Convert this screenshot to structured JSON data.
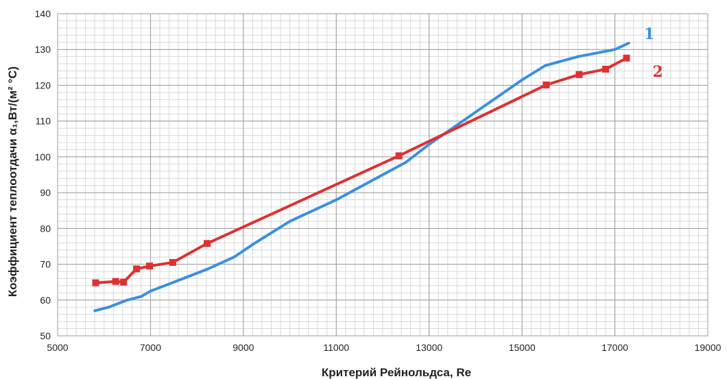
{
  "chart_data": {
    "type": "line",
    "xlabel": "Критерий Рейнольдса, Re",
    "ylabel": "Коэффициент теплоотдачи α₁,Вт/(м² °С)",
    "xlim": [
      5000,
      19000
    ],
    "ylim": [
      50,
      140
    ],
    "x_ticks": [
      "5000",
      "7000",
      "9000",
      "11000",
      "13000",
      "15000",
      "17000",
      "19000"
    ],
    "y_ticks": [
      "50",
      "60",
      "70",
      "80",
      "90",
      "100",
      "110",
      "120",
      "130",
      "140"
    ],
    "grid": true,
    "series": [
      {
        "name": "1",
        "color": "#3b8fe0",
        "markers": false,
        "points": [
          [
            5800,
            57
          ],
          [
            6100,
            58
          ],
          [
            6500,
            60
          ],
          [
            6800,
            61
          ],
          [
            7000,
            62.5
          ],
          [
            7500,
            65
          ],
          [
            8200,
            68.5
          ],
          [
            8800,
            72
          ],
          [
            9200,
            75.5
          ],
          [
            10000,
            82
          ],
          [
            11000,
            88
          ],
          [
            12000,
            95
          ],
          [
            12500,
            98.5
          ],
          [
            13000,
            103.5
          ],
          [
            13500,
            108
          ],
          [
            14000,
            112.5
          ],
          [
            14500,
            117
          ],
          [
            15000,
            121.5
          ],
          [
            15500,
            125.5
          ],
          [
            16200,
            128
          ],
          [
            17000,
            130
          ],
          [
            17300,
            131.8
          ]
        ]
      },
      {
        "name": "2",
        "color": "#e03030",
        "markers": true,
        "points": [
          [
            5820,
            64.8
          ],
          [
            6250,
            65.2
          ],
          [
            6420,
            65
          ],
          [
            6700,
            68.7
          ],
          [
            6980,
            69.5
          ],
          [
            7480,
            70.5
          ],
          [
            8220,
            75.8
          ],
          [
            12350,
            100.3
          ],
          [
            15520,
            120.1
          ],
          [
            16230,
            123
          ],
          [
            16800,
            124.5
          ],
          [
            17250,
            127.6
          ]
        ]
      }
    ]
  }
}
